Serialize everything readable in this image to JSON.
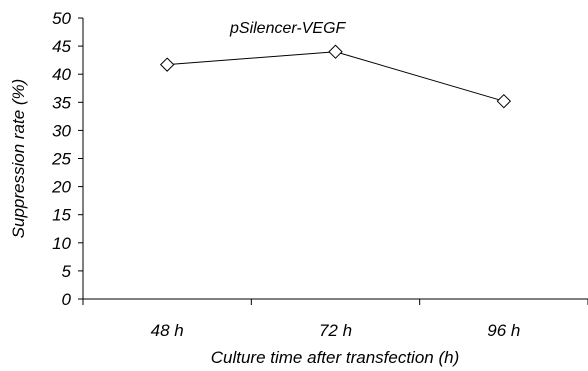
{
  "chart_data": {
    "type": "line",
    "title": "pSilencer-VEGF",
    "xlabel": "Culture time after transfection (h)",
    "ylabel": "Suppression rate (%)",
    "categories": [
      "48 h",
      "72 h",
      "96 h"
    ],
    "series": [
      {
        "name": "",
        "values": [
          41.7,
          44.0,
          35.2
        ]
      }
    ],
    "ylim": [
      0,
      50
    ],
    "yticks": [
      "0",
      "5",
      "10",
      "15",
      "20",
      "25",
      "30",
      "35",
      "40",
      "45",
      "50"
    ],
    "grid": false,
    "marker": "diamond",
    "colors": {
      "line": "#000000",
      "marker_fill": "#ffffff"
    }
  }
}
